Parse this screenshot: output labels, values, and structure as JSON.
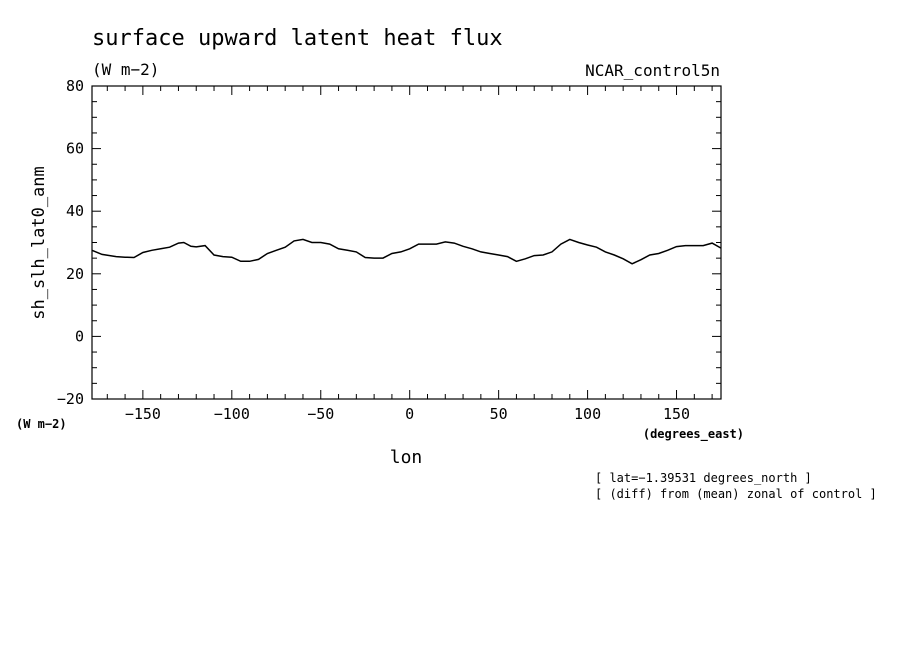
{
  "chart_data": {
    "type": "line",
    "title": "surface upward latent heat flux",
    "subtitle": "(W m−2)",
    "dataset_label": "NCAR_control5n",
    "xlabel": "lon",
    "x_units": "(degrees_east)",
    "ylabel": "sh_slh_lat0_anm",
    "y_units": "(W m−2)",
    "xlim": [
      -178.6,
      175.0
    ],
    "ylim": [
      -20,
      80
    ],
    "x_ticks": [
      -150,
      -100,
      -50,
      0,
      50,
      100,
      150
    ],
    "x_tick_labels": [
      "−150",
      "−100",
      "−50",
      "0",
      "50",
      "100",
      "150"
    ],
    "y_ticks": [
      -20,
      0,
      20,
      40,
      60,
      80
    ],
    "y_tick_labels": [
      "−20",
      "0",
      "20",
      "40",
      "60",
      "80"
    ],
    "grid": false,
    "notes": [
      "[ lat=−1.39531 degrees_north ]",
      "[ (diff) from (mean) zonal of control ]"
    ],
    "series": [
      {
        "x": [
          -178.6,
          -173,
          -165,
          -160,
          -155,
          -150,
          -145,
          -140,
          -135,
          -130,
          -127,
          -123,
          -120,
          -115,
          -110,
          -105,
          -100,
          -95,
          -90,
          -85,
          -80,
          -75,
          -70,
          -65,
          -60,
          -55,
          -50,
          -45,
          -40,
          -35,
          -30,
          -25,
          -20,
          -15,
          -10,
          -5,
          0,
          5,
          10,
          15,
          20,
          25,
          30,
          35,
          40,
          45,
          50,
          55,
          60,
          65,
          70,
          75,
          80,
          85,
          90,
          95,
          100,
          105,
          110,
          115,
          120,
          125,
          130,
          135,
          140,
          145,
          150,
          155,
          160,
          165,
          170,
          175
        ],
        "values": [
          27.5,
          26.2,
          25.5,
          25.3,
          25.2,
          26.8,
          27.5,
          28.0,
          28.5,
          29.8,
          30.0,
          28.8,
          28.6,
          29.0,
          26.0,
          25.5,
          25.3,
          24.0,
          24.0,
          24.6,
          26.5,
          27.5,
          28.5,
          30.5,
          31.0,
          30.0,
          30.0,
          29.5,
          28.0,
          27.5,
          27.0,
          25.2,
          25.0,
          25.0,
          26.5,
          27.0,
          28.0,
          29.5,
          29.5,
          29.5,
          30.2,
          29.8,
          28.8,
          28.0,
          27.0,
          26.5,
          26.0,
          25.5,
          24.0,
          24.8,
          25.8,
          26.0,
          27.0,
          29.5,
          31.0,
          30.0,
          29.2,
          28.5,
          27.0,
          26.0,
          24.8,
          23.2,
          24.5,
          26.0,
          26.5,
          27.5,
          28.7,
          29.0,
          29.0,
          29.0,
          29.8,
          28.2
        ]
      }
    ]
  }
}
